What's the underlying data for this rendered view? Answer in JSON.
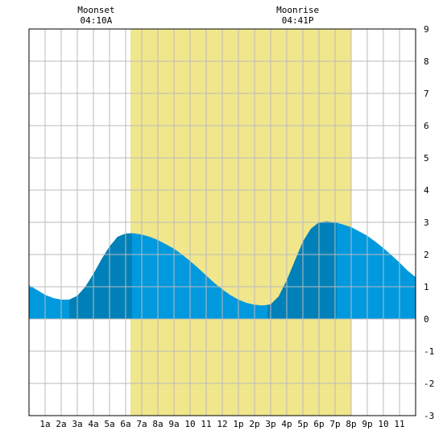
{
  "chart_data": {
    "type": "area",
    "title": "",
    "xlabel": "",
    "ylabel": "",
    "xlim": [
      0,
      24
    ],
    "ylim": [
      -3,
      9
    ],
    "yticks": [
      -3,
      -2,
      -1,
      0,
      1,
      2,
      3,
      4,
      5,
      6,
      7,
      8,
      9
    ],
    "x_tick_labels": [
      "1a",
      "2a",
      "3a",
      "4a",
      "5a",
      "6a",
      "7a",
      "8a",
      "9a",
      "10",
      "11",
      "12",
      "1p",
      "2p",
      "3p",
      "4p",
      "5p",
      "6p",
      "7p",
      "8p",
      "9p",
      "10",
      "11"
    ],
    "grid": true,
    "annotations": [
      {
        "label": "Moonset",
        "time": "04:10A",
        "x": 4.17
      },
      {
        "label": "Moonrise",
        "time": "04:41P",
        "x": 16.68
      }
    ],
    "daylight": [
      6.3,
      20.0
    ],
    "tide_points": {
      "x": [
        0,
        0.5,
        1.0,
        1.5,
        2.0,
        2.5,
        3.0,
        3.5,
        4.0,
        4.5,
        5.0,
        5.5,
        6.0,
        6.5,
        7.0,
        7.5,
        8.0,
        8.5,
        9.0,
        9.5,
        10.0,
        10.5,
        11.0,
        11.5,
        12.0,
        12.5,
        13.0,
        13.5,
        14.0,
        14.5,
        15.0,
        15.5,
        16.0,
        16.5,
        17.0,
        17.5,
        18.0,
        18.5,
        19.0,
        19.5,
        20.0,
        20.5,
        21.0,
        21.5,
        22.0,
        22.5,
        23.0,
        23.5,
        24.0
      ],
      "y": [
        1.05,
        0.9,
        0.75,
        0.65,
        0.6,
        0.6,
        0.72,
        1.0,
        1.4,
        1.85,
        2.25,
        2.55,
        2.65,
        2.66,
        2.62,
        2.55,
        2.45,
        2.32,
        2.18,
        2.0,
        1.8,
        1.58,
        1.35,
        1.12,
        0.92,
        0.74,
        0.6,
        0.5,
        0.44,
        0.42,
        0.45,
        0.7,
        1.2,
        1.8,
        2.4,
        2.8,
        3.0,
        3.03,
        3.0,
        2.93,
        2.85,
        2.72,
        2.58,
        2.4,
        2.2,
        1.98,
        1.75,
        1.5,
        1.3
      ]
    },
    "series": [
      {
        "name": "",
        "color": "#0099dd"
      },
      {
        "name": "",
        "color": "#0080b8"
      }
    ],
    "dark_bands": [
      [
        2.5,
        6.4
      ],
      [
        14.8,
        19.1
      ]
    ],
    "colors": {
      "daylight": "#f0e68c",
      "tide": "#0099dd",
      "tide_rising": "#0080b8",
      "grid": "#bbbbbb"
    }
  }
}
